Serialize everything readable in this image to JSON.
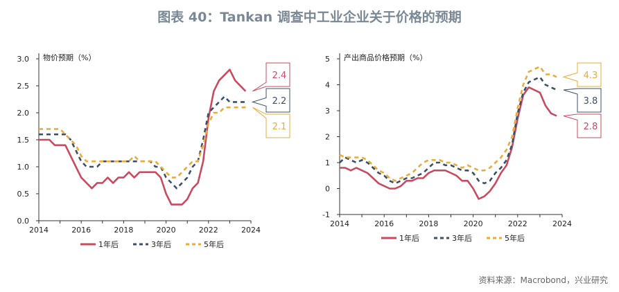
{
  "title": "图表 40：Tankan 调查中工业企业关于价格的预期",
  "source": "资料来源：Macrobond，兴业研究",
  "colors": {
    "s1": "#c94a5e",
    "s3": "#3d4f66",
    "s5": "#e8ac3a",
    "axis": "#333333"
  },
  "chart_data": [
    {
      "type": "line",
      "title": "物价预期（%）",
      "xlim": [
        2014,
        2024
      ],
      "ylim": [
        0,
        3
      ],
      "xticks": [
        "2014",
        "2016",
        "2018",
        "2020",
        "2022",
        "2024"
      ],
      "yticks": [
        "0.0",
        "0.5",
        "1.0",
        "1.5",
        "2.0",
        "2.5",
        "3.0"
      ],
      "legend_position": "bottom",
      "series": [
        {
          "name": "1年后",
          "color": "#c94a5e",
          "dash": "solid",
          "x": [
            2014.0,
            2014.25,
            2014.5,
            2014.75,
            2015.0,
            2015.25,
            2015.5,
            2015.75,
            2016.0,
            2016.25,
            2016.5,
            2016.75,
            2017.0,
            2017.25,
            2017.5,
            2017.75,
            2018.0,
            2018.25,
            2018.5,
            2018.75,
            2019.0,
            2019.25,
            2019.5,
            2019.75,
            2020.0,
            2020.25,
            2020.5,
            2020.75,
            2021.0,
            2021.25,
            2021.5,
            2021.75,
            2022.0,
            2022.25,
            2022.5,
            2022.75,
            2023.0,
            2023.25,
            2023.5,
            2023.75
          ],
          "y": [
            1.5,
            1.5,
            1.5,
            1.4,
            1.4,
            1.4,
            1.2,
            1.0,
            0.8,
            0.7,
            0.6,
            0.7,
            0.7,
            0.8,
            0.7,
            0.8,
            0.8,
            0.9,
            0.8,
            0.9,
            0.9,
            0.9,
            0.9,
            0.8,
            0.5,
            0.3,
            0.3,
            0.3,
            0.4,
            0.6,
            0.7,
            1.1,
            1.9,
            2.4,
            2.6,
            2.7,
            2.8,
            2.6,
            2.5,
            2.4
          ]
        },
        {
          "name": "3年后",
          "color": "#3d4f66",
          "dash": "6,5",
          "x": [
            2014.0,
            2014.25,
            2014.5,
            2014.75,
            2015.0,
            2015.25,
            2015.5,
            2015.75,
            2016.0,
            2016.25,
            2016.5,
            2016.75,
            2017.0,
            2017.25,
            2017.5,
            2017.75,
            2018.0,
            2018.25,
            2018.5,
            2018.75,
            2019.0,
            2019.25,
            2019.5,
            2019.75,
            2020.0,
            2020.25,
            2020.5,
            2020.75,
            2021.0,
            2021.25,
            2021.5,
            2021.75,
            2022.0,
            2022.25,
            2022.5,
            2022.75,
            2023.0,
            2023.25,
            2023.5,
            2023.75
          ],
          "y": [
            1.6,
            1.6,
            1.6,
            1.6,
            1.6,
            1.6,
            1.5,
            1.3,
            1.1,
            1.0,
            1.0,
            1.0,
            1.1,
            1.1,
            1.1,
            1.1,
            1.1,
            1.1,
            1.1,
            1.1,
            1.1,
            1.1,
            1.0,
            1.0,
            0.8,
            0.7,
            0.6,
            0.7,
            0.8,
            1.0,
            1.1,
            1.5,
            2.0,
            2.1,
            2.2,
            2.3,
            2.2,
            2.2,
            2.2,
            2.2
          ]
        },
        {
          "name": "5年后",
          "color": "#e8ac3a",
          "dash": "6,5",
          "x": [
            2014.0,
            2014.25,
            2014.5,
            2014.75,
            2015.0,
            2015.25,
            2015.5,
            2015.75,
            2016.0,
            2016.25,
            2016.5,
            2016.75,
            2017.0,
            2017.25,
            2017.5,
            2017.75,
            2018.0,
            2018.25,
            2018.5,
            2018.75,
            2019.0,
            2019.25,
            2019.5,
            2019.75,
            2020.0,
            2020.25,
            2020.5,
            2020.75,
            2021.0,
            2021.25,
            2021.5,
            2021.75,
            2022.0,
            2022.25,
            2022.5,
            2022.75,
            2023.0,
            2023.25,
            2023.5,
            2023.75
          ],
          "y": [
            1.7,
            1.7,
            1.7,
            1.7,
            1.7,
            1.6,
            1.5,
            1.4,
            1.2,
            1.1,
            1.1,
            1.1,
            1.1,
            1.1,
            1.1,
            1.1,
            1.1,
            1.1,
            1.2,
            1.1,
            1.1,
            1.1,
            1.1,
            1.0,
            0.9,
            0.8,
            0.8,
            0.9,
            1.0,
            1.1,
            1.1,
            1.4,
            1.8,
            2.0,
            2.0,
            2.1,
            2.1,
            2.1,
            2.1,
            2.1
          ]
        }
      ],
      "end_labels": [
        {
          "text": "2.4",
          "value": 2.4,
          "color": "#c94a5e"
        },
        {
          "text": "2.2",
          "value": 2.2,
          "color": "#3d4f66"
        },
        {
          "text": "2.1",
          "value": 2.1,
          "color": "#e8ac3a"
        }
      ]
    },
    {
      "type": "line",
      "title": "产出商品价格预期（%）",
      "xlim": [
        2014,
        2024
      ],
      "ylim": [
        -1,
        5
      ],
      "xticks": [
        "2014",
        "2016",
        "2018",
        "2020",
        "2022",
        "2024"
      ],
      "yticks": [
        "-1",
        "0",
        "1",
        "2",
        "3",
        "4",
        "5"
      ],
      "legend_position": "bottom",
      "series": [
        {
          "name": "1年后",
          "color": "#c94a5e",
          "dash": "solid",
          "x": [
            2014.0,
            2014.25,
            2014.5,
            2014.75,
            2015.0,
            2015.25,
            2015.5,
            2015.75,
            2016.0,
            2016.25,
            2016.5,
            2016.75,
            2017.0,
            2017.25,
            2017.5,
            2017.75,
            2018.0,
            2018.25,
            2018.5,
            2018.75,
            2019.0,
            2019.25,
            2019.5,
            2019.75,
            2020.0,
            2020.25,
            2020.5,
            2020.75,
            2021.0,
            2021.25,
            2021.5,
            2021.75,
            2022.0,
            2022.25,
            2022.5,
            2022.75,
            2023.0,
            2023.25,
            2023.5,
            2023.75
          ],
          "y": [
            0.8,
            0.8,
            0.7,
            0.8,
            0.7,
            0.6,
            0.4,
            0.2,
            0.1,
            0.0,
            0.0,
            0.1,
            0.3,
            0.3,
            0.4,
            0.4,
            0.6,
            0.7,
            0.7,
            0.7,
            0.6,
            0.5,
            0.3,
            0.3,
            0.0,
            -0.4,
            -0.3,
            -0.1,
            0.2,
            0.6,
            0.9,
            1.6,
            2.7,
            3.6,
            3.9,
            3.8,
            3.7,
            3.2,
            2.9,
            2.8
          ]
        },
        {
          "name": "3年后",
          "color": "#3d4f66",
          "dash": "6,5",
          "x": [
            2014.0,
            2014.25,
            2014.5,
            2014.75,
            2015.0,
            2015.25,
            2015.5,
            2015.75,
            2016.0,
            2016.25,
            2016.5,
            2016.75,
            2017.0,
            2017.25,
            2017.5,
            2017.75,
            2018.0,
            2018.25,
            2018.5,
            2018.75,
            2019.0,
            2019.25,
            2019.5,
            2019.75,
            2020.0,
            2020.25,
            2020.5,
            2020.75,
            2021.0,
            2021.25,
            2021.5,
            2021.75,
            2022.0,
            2022.25,
            2022.5,
            2022.75,
            2023.0,
            2023.25,
            2023.5,
            2023.75
          ],
          "y": [
            1.0,
            1.2,
            1.1,
            1.0,
            1.1,
            1.0,
            0.8,
            0.6,
            0.5,
            0.3,
            0.2,
            0.3,
            0.4,
            0.4,
            0.5,
            0.6,
            0.8,
            1.0,
            1.0,
            0.9,
            0.9,
            0.8,
            0.7,
            0.7,
            0.6,
            0.3,
            0.2,
            0.3,
            0.6,
            0.8,
            1.1,
            1.7,
            2.9,
            3.7,
            4.1,
            4.2,
            4.3,
            4.0,
            3.9,
            3.8
          ]
        },
        {
          "name": "5年后",
          "color": "#e8ac3a",
          "dash": "6,5",
          "x": [
            2014.0,
            2014.25,
            2014.5,
            2014.75,
            2015.0,
            2015.25,
            2015.5,
            2015.75,
            2016.0,
            2016.25,
            2016.5,
            2016.75,
            2017.0,
            2017.25,
            2017.5,
            2017.75,
            2018.0,
            2018.25,
            2018.5,
            2018.75,
            2019.0,
            2019.25,
            2019.5,
            2019.75,
            2020.0,
            2020.25,
            2020.5,
            2020.75,
            2021.0,
            2021.25,
            2021.5,
            2021.75,
            2022.0,
            2022.25,
            2022.5,
            2022.75,
            2023.0,
            2023.25,
            2023.5,
            2023.75
          ],
          "y": [
            1.3,
            1.2,
            1.2,
            1.2,
            1.2,
            1.1,
            0.9,
            0.7,
            0.6,
            0.4,
            0.3,
            0.4,
            0.5,
            0.6,
            0.8,
            1.0,
            1.1,
            1.1,
            1.1,
            1.0,
            1.0,
            0.9,
            0.8,
            0.9,
            0.8,
            0.7,
            0.7,
            0.8,
            1.0,
            1.2,
            1.5,
            2.0,
            3.1,
            4.0,
            4.5,
            4.6,
            4.7,
            4.4,
            4.4,
            4.3
          ]
        }
      ],
      "end_labels": [
        {
          "text": "4.3",
          "value": 4.3,
          "color": "#e8ac3a"
        },
        {
          "text": "3.8",
          "value": 3.8,
          "color": "#3d4f66"
        },
        {
          "text": "2.8",
          "value": 2.8,
          "color": "#c94a5e"
        }
      ]
    }
  ]
}
